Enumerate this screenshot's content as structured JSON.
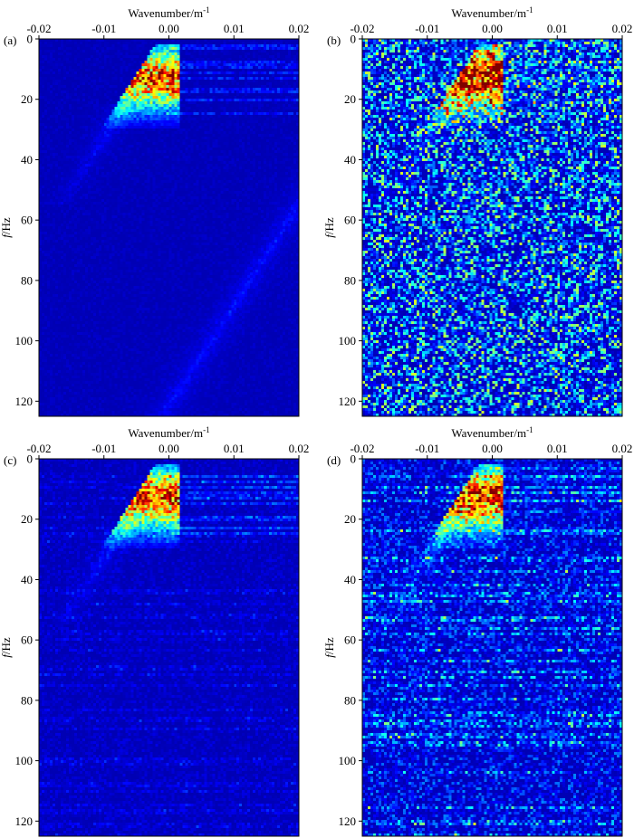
{
  "figure": {
    "colormap": [
      "#00008f",
      "#0000ff",
      "#0080ff",
      "#00ffff",
      "#80ff80",
      "#ffff00",
      "#ff8000",
      "#ff0000",
      "#800000"
    ]
  },
  "chart_data": [
    {
      "panel": "(a)",
      "type": "heatmap",
      "xlabel": "Wavenumber/m",
      "xlabel_sup": "-1",
      "ylabel_italic": "f",
      "ylabel": "/Hz",
      "xlim": [
        -0.02,
        0.02
      ],
      "ylim": [
        0,
        125
      ],
      "y_inverted": true,
      "xticks": [
        -0.02,
        -0.01,
        0.0,
        0.01,
        0.02
      ],
      "xtick_labels": [
        "-0.02",
        "-0.01",
        "0.00",
        "0.01",
        "0.02"
      ],
      "yticks": [
        0,
        20,
        40,
        60,
        80,
        100,
        120
      ],
      "ytick_labels": [
        "0",
        "20",
        "40",
        "60",
        "80",
        "100",
        "120"
      ],
      "noise_level": 0.03,
      "horizontal_streaks": 0.0,
      "aliased_fan": true,
      "source_wavefield_fan": true
    },
    {
      "panel": "(b)",
      "type": "heatmap",
      "xlabel": "Wavenumber/m",
      "xlabel_sup": "-1",
      "ylabel_italic": "f",
      "ylabel": "/Hz",
      "xlim": [
        -0.02,
        0.02
      ],
      "ylim": [
        0,
        125
      ],
      "y_inverted": true,
      "xticks": [
        -0.02,
        -0.01,
        0.0,
        0.01,
        0.02
      ],
      "xtick_labels": [
        "-0.02",
        "-0.01",
        "0.00",
        "0.01",
        "0.02"
      ],
      "yticks": [
        0,
        20,
        40,
        60,
        80,
        100,
        120
      ],
      "ytick_labels": [
        "0",
        "20",
        "40",
        "60",
        "80",
        "100",
        "120"
      ],
      "noise_level": 0.55,
      "horizontal_streaks": 0.0,
      "aliased_fan": false,
      "source_wavefield_fan": true
    },
    {
      "panel": "(c)",
      "type": "heatmap",
      "xlabel": "Wavenumber/m",
      "xlabel_sup": "-1",
      "ylabel_italic": "f",
      "ylabel": "/Hz",
      "xlim": [
        -0.02,
        0.02
      ],
      "ylim": [
        0,
        125
      ],
      "y_inverted": true,
      "xticks": [
        -0.02,
        -0.01,
        0.0,
        0.01,
        0.02
      ],
      "xtick_labels": [
        "-0.02",
        "-0.01",
        "0.00",
        "0.01",
        "0.02"
      ],
      "yticks": [
        0,
        20,
        40,
        60,
        80,
        100,
        120
      ],
      "ytick_labels": [
        "0",
        "20",
        "40",
        "60",
        "80",
        "100",
        "120"
      ],
      "noise_level": 0.06,
      "horizontal_streaks": 0.1,
      "aliased_fan": false,
      "source_wavefield_fan": true
    },
    {
      "panel": "(d)",
      "type": "heatmap",
      "xlabel": "Wavenumber/m",
      "xlabel_sup": "-1",
      "ylabel_italic": "f",
      "ylabel": "/Hz",
      "xlim": [
        -0.02,
        0.02
      ],
      "ylim": [
        0,
        125
      ],
      "y_inverted": true,
      "xticks": [
        -0.02,
        -0.01,
        0.0,
        0.01,
        0.02
      ],
      "xtick_labels": [
        "-0.02",
        "-0.01",
        "0.00",
        "0.01",
        "0.02"
      ],
      "yticks": [
        0,
        20,
        40,
        60,
        80,
        100,
        120
      ],
      "ytick_labels": [
        "0",
        "20",
        "40",
        "60",
        "80",
        "100",
        "120"
      ],
      "noise_level": 0.22,
      "horizontal_streaks": 0.35,
      "aliased_fan": false,
      "source_wavefield_fan": true
    }
  ]
}
